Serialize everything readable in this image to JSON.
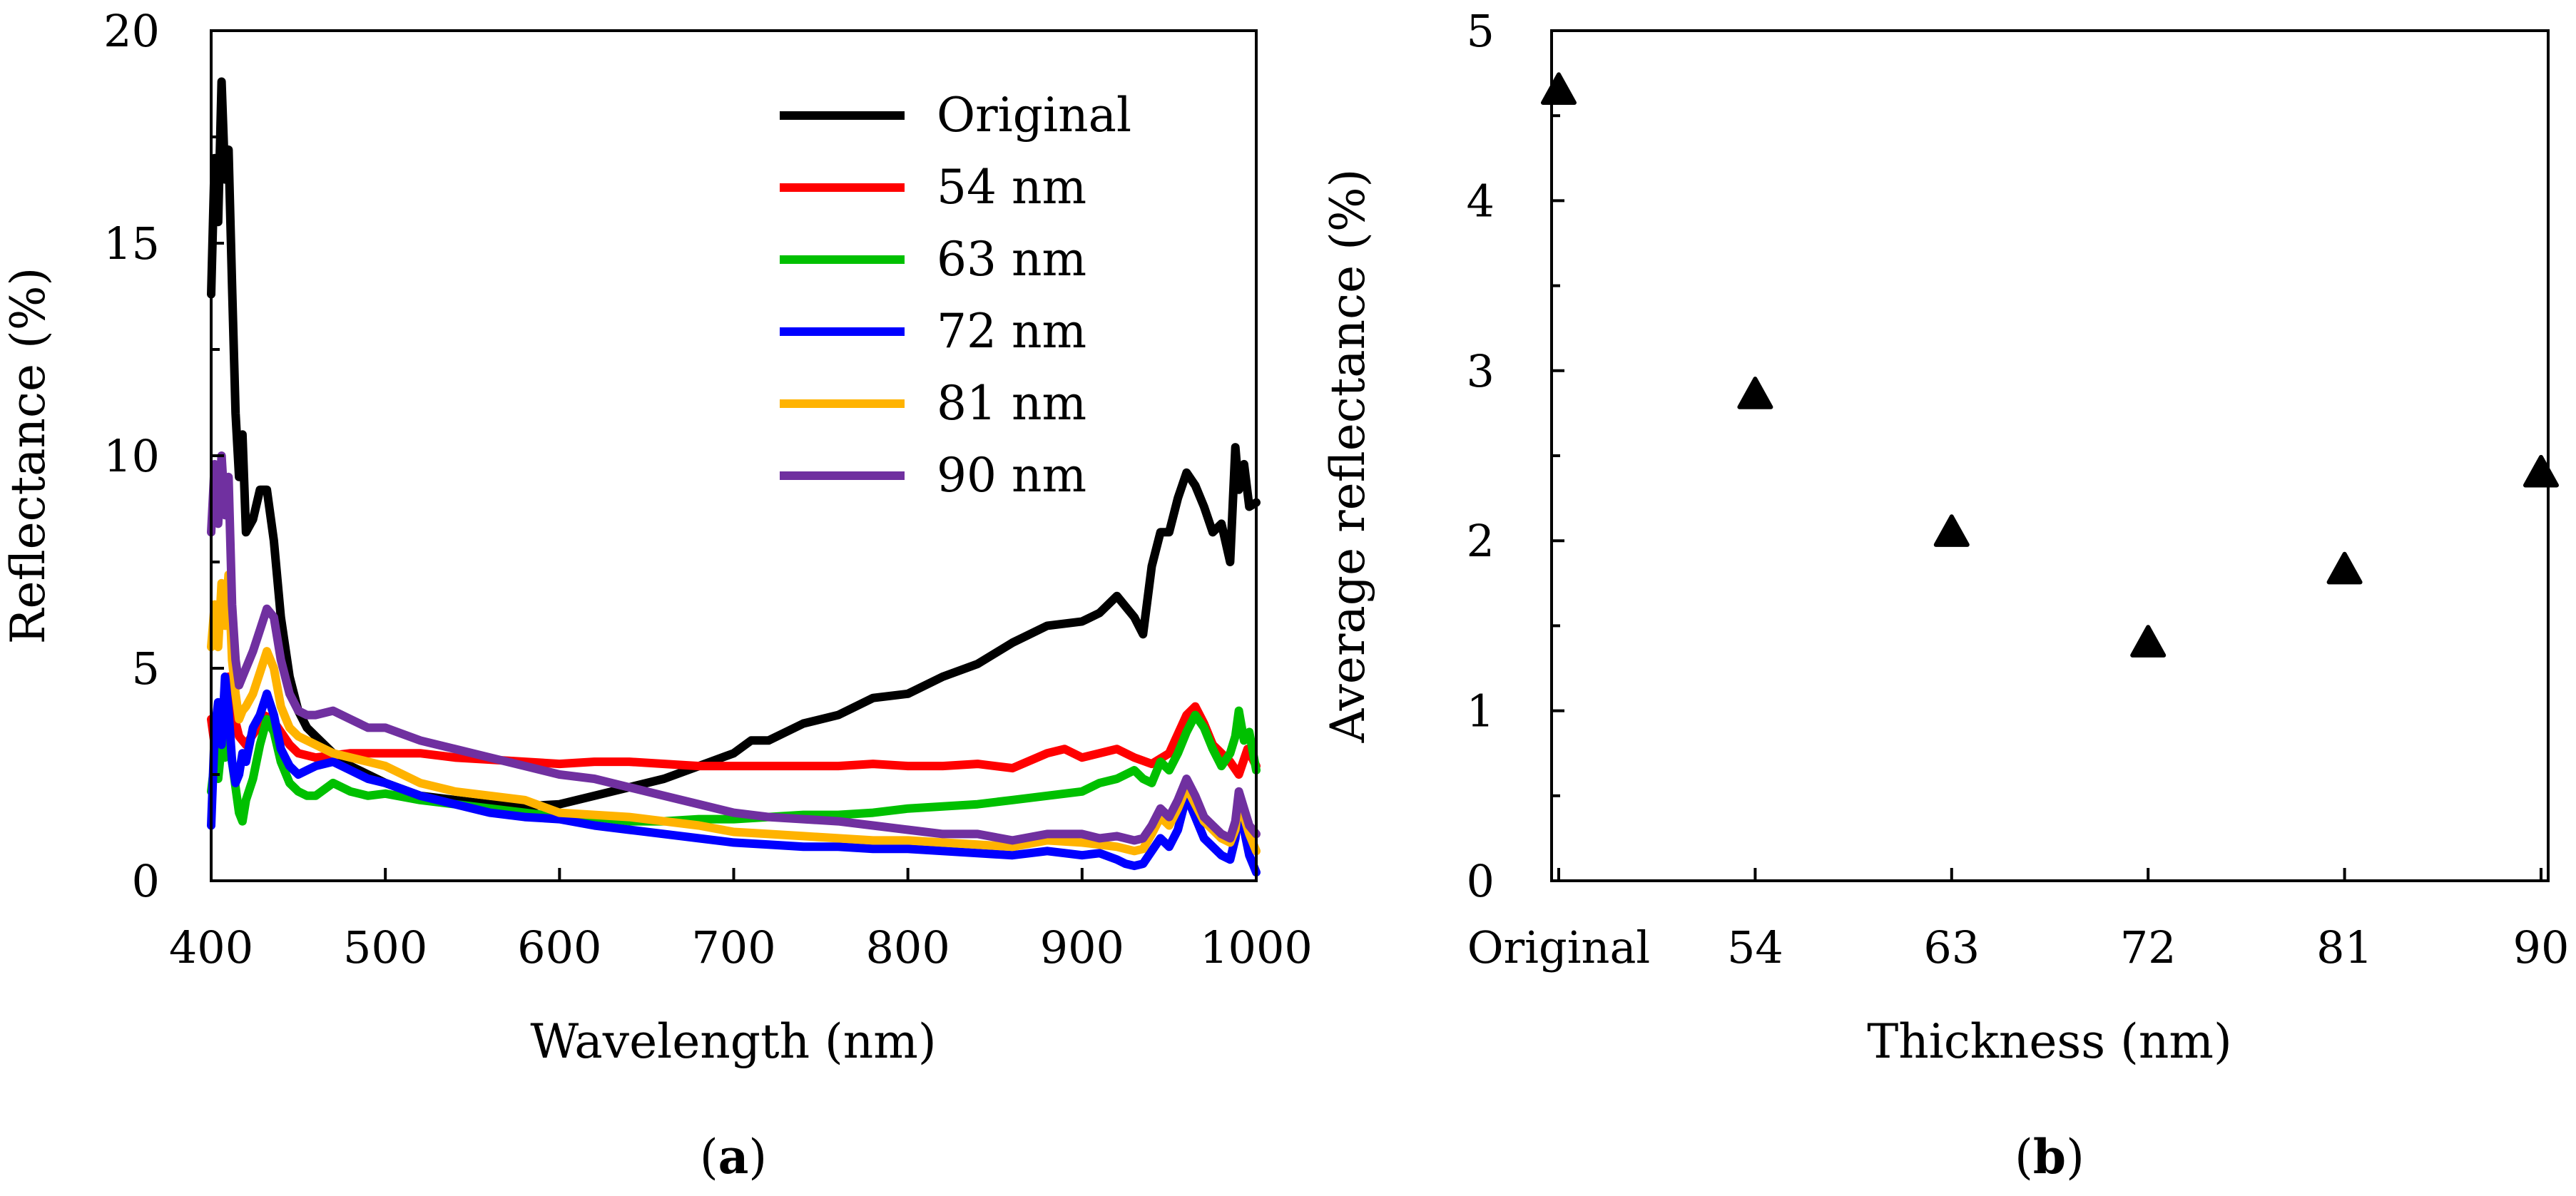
{
  "chart_data": [
    {
      "type": "line",
      "panel": "a",
      "caption": "a",
      "xlabel": "Wavelength (nm)",
      "ylabel": "Reflectance (%)",
      "xlim": [
        400,
        1000
      ],
      "ylim": [
        0,
        20
      ],
      "xticks": [
        400,
        500,
        600,
        700,
        800,
        900,
        1000
      ],
      "yticks": [
        0,
        5,
        10,
        15,
        20
      ],
      "legend_position": "top-right",
      "series": [
        {
          "name": "Original",
          "color": "#000000",
          "x": [
            400,
            402,
            404,
            406,
            408,
            410,
            412,
            414,
            416,
            418,
            420,
            424,
            428,
            432,
            436,
            440,
            445,
            450,
            455,
            460,
            470,
            480,
            490,
            500,
            520,
            540,
            560,
            580,
            600,
            620,
            640,
            660,
            680,
            700,
            710,
            720,
            730,
            740,
            760,
            780,
            800,
            820,
            840,
            860,
            880,
            900,
            910,
            920,
            930,
            935,
            940,
            945,
            950,
            955,
            960,
            965,
            970,
            975,
            980,
            985,
            988,
            990,
            993,
            996,
            1000
          ],
          "y": [
            13.8,
            17,
            15.5,
            18.8,
            16.5,
            17.2,
            14,
            11,
            9.5,
            10.5,
            8.2,
            8.5,
            9.2,
            9.2,
            8,
            6.2,
            4.8,
            4,
            3.6,
            3.4,
            3,
            2.7,
            2.5,
            2.3,
            2,
            1.9,
            1.8,
            1.75,
            1.8,
            2,
            2.2,
            2.4,
            2.7,
            3.0,
            3.3,
            3.3,
            3.5,
            3.7,
            3.9,
            4.3,
            4.4,
            4.8,
            5.1,
            5.6,
            6.0,
            6.1,
            6.3,
            6.7,
            6.2,
            5.8,
            7.4,
            8.2,
            8.2,
            9,
            9.6,
            9.3,
            8.8,
            8.2,
            8.4,
            7.5,
            10.2,
            9.2,
            9.8,
            8.8,
            8.9
          ]
        },
        {
          "name": "54 nm",
          "color": "#ff0000",
          "x": [
            400,
            402,
            404,
            406,
            408,
            410,
            413,
            416,
            420,
            425,
            430,
            435,
            440,
            445,
            450,
            460,
            470,
            480,
            490,
            500,
            520,
            540,
            560,
            580,
            600,
            620,
            640,
            660,
            680,
            700,
            720,
            740,
            760,
            780,
            800,
            820,
            840,
            860,
            880,
            890,
            900,
            910,
            920,
            930,
            940,
            950,
            960,
            965,
            970,
            975,
            980,
            985,
            990,
            995,
            1000
          ],
          "y": [
            3.8,
            3.2,
            3.0,
            4.0,
            3.8,
            4.8,
            3.9,
            3.4,
            3.2,
            3.5,
            3.9,
            3.8,
            3.5,
            3.2,
            3.0,
            2.9,
            2.95,
            3.0,
            3.0,
            3.0,
            3.0,
            2.9,
            2.85,
            2.8,
            2.75,
            2.8,
            2.8,
            2.75,
            2.7,
            2.7,
            2.7,
            2.7,
            2.7,
            2.75,
            2.7,
            2.7,
            2.75,
            2.65,
            3.0,
            3.1,
            2.9,
            3.0,
            3.1,
            2.9,
            2.75,
            3.0,
            3.9,
            4.1,
            3.7,
            3.2,
            3.0,
            2.8,
            2.5,
            3.1,
            2.7
          ]
        },
        {
          "name": "63 nm",
          "color": "#00c000",
          "x": [
            400,
            402,
            404,
            406,
            408,
            410,
            412,
            414,
            416,
            418,
            420,
            424,
            428,
            432,
            436,
            440,
            445,
            450,
            455,
            460,
            470,
            480,
            490,
            500,
            520,
            540,
            560,
            580,
            600,
            620,
            640,
            660,
            680,
            700,
            720,
            740,
            760,
            780,
            800,
            820,
            840,
            860,
            880,
            900,
            910,
            920,
            930,
            935,
            940,
            945,
            950,
            955,
            960,
            965,
            970,
            975,
            980,
            985,
            988,
            990,
            993,
            996,
            1000
          ],
          "y": [
            2.1,
            2.8,
            2.4,
            3.2,
            2.9,
            3.6,
            2.8,
            2.2,
            1.6,
            1.4,
            1.9,
            2.4,
            3.2,
            3.8,
            3.5,
            2.8,
            2.3,
            2.1,
            2.0,
            2.0,
            2.3,
            2.1,
            2.0,
            2.05,
            1.9,
            1.8,
            1.7,
            1.6,
            1.5,
            1.5,
            1.4,
            1.4,
            1.45,
            1.45,
            1.5,
            1.55,
            1.55,
            1.6,
            1.7,
            1.75,
            1.8,
            1.9,
            2.0,
            2.1,
            2.3,
            2.4,
            2.6,
            2.4,
            2.3,
            2.8,
            2.6,
            3.0,
            3.5,
            3.9,
            3.6,
            3.1,
            2.7,
            3.0,
            3.4,
            4.0,
            3.3,
            3.5,
            2.6
          ]
        },
        {
          "name": "72 nm",
          "color": "#0000ff",
          "x": [
            400,
            402,
            404,
            406,
            408,
            410,
            412,
            414,
            416,
            418,
            420,
            424,
            428,
            432,
            436,
            440,
            445,
            450,
            455,
            460,
            470,
            480,
            490,
            500,
            520,
            540,
            560,
            580,
            600,
            620,
            640,
            660,
            680,
            700,
            720,
            740,
            760,
            780,
            800,
            820,
            840,
            860,
            880,
            900,
            910,
            920,
            925,
            930,
            935,
            940,
            945,
            950,
            955,
            960,
            965,
            970,
            975,
            980,
            985,
            988,
            990,
            993,
            996,
            1000
          ],
          "y": [
            1.3,
            3.5,
            4.2,
            3.2,
            4.8,
            4.0,
            2.8,
            2.3,
            2.5,
            3.0,
            2.8,
            3.6,
            3.9,
            4.4,
            3.9,
            3.1,
            2.7,
            2.5,
            2.6,
            2.7,
            2.8,
            2.6,
            2.4,
            2.3,
            2.0,
            1.8,
            1.6,
            1.5,
            1.45,
            1.3,
            1.2,
            1.1,
            1.0,
            0.9,
            0.85,
            0.8,
            0.8,
            0.75,
            0.75,
            0.7,
            0.65,
            0.6,
            0.7,
            0.6,
            0.65,
            0.5,
            0.4,
            0.35,
            0.4,
            0.7,
            1.0,
            0.8,
            1.2,
            2.0,
            1.5,
            1.0,
            0.8,
            0.6,
            0.5,
            1.0,
            1.8,
            1.2,
            0.6,
            0.2
          ]
        },
        {
          "name": "81 nm",
          "color": "#ffb300",
          "x": [
            400,
            402,
            404,
            406,
            408,
            410,
            412,
            414,
            416,
            418,
            420,
            424,
            428,
            432,
            436,
            440,
            445,
            450,
            455,
            460,
            470,
            480,
            490,
            500,
            520,
            540,
            560,
            580,
            600,
            620,
            640,
            660,
            680,
            700,
            720,
            740,
            760,
            780,
            800,
            820,
            840,
            860,
            880,
            900,
            910,
            920,
            925,
            930,
            935,
            940,
            945,
            950,
            955,
            960,
            965,
            970,
            975,
            980,
            985,
            988,
            990,
            993,
            996,
            1000
          ],
          "y": [
            5.5,
            6.5,
            5.5,
            7.0,
            6.0,
            7.2,
            5.2,
            4.4,
            3.8,
            4.0,
            4.1,
            4.4,
            4.9,
            5.4,
            5.0,
            4.1,
            3.6,
            3.4,
            3.3,
            3.2,
            3.0,
            2.9,
            2.8,
            2.7,
            2.3,
            2.1,
            2.0,
            1.9,
            1.6,
            1.55,
            1.5,
            1.4,
            1.3,
            1.15,
            1.1,
            1.05,
            1.0,
            0.95,
            0.95,
            0.9,
            0.85,
            0.8,
            0.95,
            0.9,
            0.85,
            0.8,
            0.75,
            0.7,
            0.75,
            1.1,
            1.5,
            1.3,
            1.7,
            2.2,
            1.8,
            1.4,
            1.2,
            1.0,
            0.9,
            1.2,
            1.9,
            1.5,
            1.1,
            0.7
          ]
        },
        {
          "name": "90 nm",
          "color": "#7030a0",
          "x": [
            400,
            402,
            404,
            406,
            408,
            410,
            412,
            414,
            416,
            418,
            420,
            424,
            428,
            432,
            436,
            440,
            445,
            450,
            455,
            460,
            470,
            480,
            490,
            500,
            520,
            540,
            560,
            580,
            600,
            620,
            640,
            660,
            680,
            700,
            720,
            740,
            760,
            780,
            800,
            820,
            840,
            860,
            880,
            900,
            910,
            920,
            925,
            930,
            935,
            940,
            945,
            950,
            955,
            960,
            965,
            970,
            975,
            980,
            985,
            988,
            990,
            993,
            996,
            1000
          ],
          "y": [
            8.2,
            9.8,
            8.4,
            10.0,
            8.6,
            9.5,
            6.5,
            5.2,
            4.6,
            4.8,
            5.0,
            5.4,
            5.9,
            6.4,
            6.2,
            5.2,
            4.4,
            4.0,
            3.9,
            3.9,
            4.0,
            3.8,
            3.6,
            3.6,
            3.3,
            3.1,
            2.9,
            2.7,
            2.5,
            2.4,
            2.2,
            2.0,
            1.8,
            1.6,
            1.5,
            1.45,
            1.4,
            1.3,
            1.2,
            1.1,
            1.1,
            0.95,
            1.1,
            1.1,
            1.0,
            1.05,
            1.0,
            0.95,
            1.0,
            1.3,
            1.7,
            1.5,
            1.9,
            2.4,
            2.0,
            1.5,
            1.3,
            1.1,
            1.0,
            1.4,
            2.1,
            1.7,
            1.3,
            1.1
          ]
        }
      ]
    },
    {
      "type": "scatter",
      "panel": "b",
      "caption": "b",
      "xlabel": "Thickness (nm)",
      "ylabel": "Average reflectance (%)",
      "ylim": [
        0,
        5
      ],
      "yticks": [
        0,
        1,
        2,
        3,
        4,
        5
      ],
      "categories": [
        "Original",
        "54",
        "63",
        "72",
        "81",
        "90"
      ],
      "values": [
        4.65,
        2.86,
        2.05,
        1.4,
        1.83,
        2.4
      ],
      "marker": "triangle"
    }
  ]
}
